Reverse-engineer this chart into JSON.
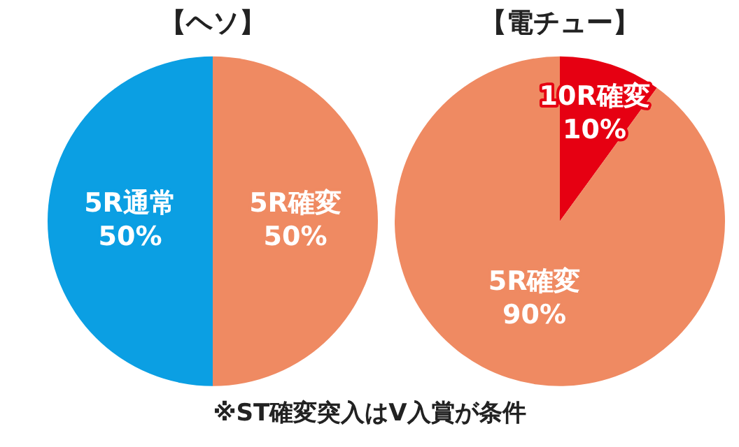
{
  "chart_data": [
    {
      "type": "pie",
      "title": "【ヘソ】",
      "categories": [
        "5R確変",
        "5R通常"
      ],
      "values": [
        50,
        50
      ],
      "colors": [
        "#ef8a62",
        "#0b9fe3"
      ],
      "value_labels": [
        "50%",
        "50%"
      ],
      "legend": false
    },
    {
      "type": "pie",
      "title": "【電チュー】",
      "categories": [
        "10R確変",
        "5R確変"
      ],
      "values": [
        10,
        90
      ],
      "colors": [
        "#e60012",
        "#ef8a62"
      ],
      "value_labels": [
        "10%",
        "90%"
      ],
      "legend": false,
      "annotations": [
        "※ST確変突入はV入賞が条件"
      ]
    }
  ]
}
